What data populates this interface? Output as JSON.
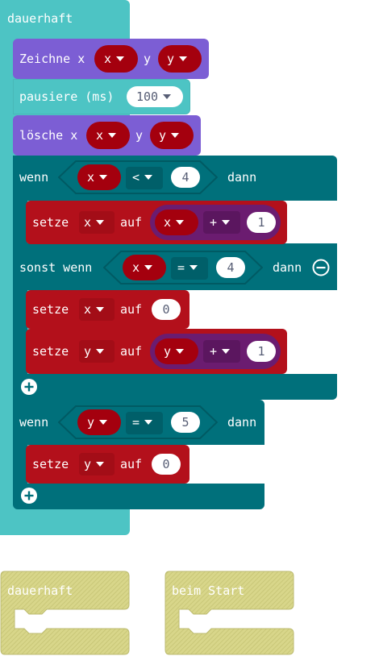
{
  "forever": {
    "label": "dauerhaft"
  },
  "plot": {
    "label": "Zeichne x",
    "y_label": "y",
    "x_var": "x",
    "y_var": "y"
  },
  "pause": {
    "label": "pausiere (ms)",
    "value": "100"
  },
  "unplot": {
    "label": "lösche x",
    "y_label": "y",
    "x_var": "x",
    "y_var": "y"
  },
  "if1": {
    "wenn": "wenn",
    "var": "x",
    "op": "<",
    "value": "4",
    "dann": "dann"
  },
  "set1": {
    "setze": "setze",
    "var": "x",
    "auf": "auf",
    "expr_var": "x",
    "expr_op": "+",
    "expr_value": "1"
  },
  "elseif": {
    "label": "sonst wenn",
    "var": "x",
    "op": "=",
    "value": "4",
    "dann": "dann"
  },
  "set2": {
    "setze": "setze",
    "var": "x",
    "auf": "auf",
    "value": "0"
  },
  "set3": {
    "setze": "setze",
    "var": "y",
    "auf": "auf",
    "expr_var": "y",
    "expr_op": "+",
    "expr_value": "1"
  },
  "if2": {
    "wenn": "wenn",
    "var": "y",
    "op": "=",
    "value": "5",
    "dann": "dann"
  },
  "set4": {
    "setze": "setze",
    "var": "y",
    "auf": "auf",
    "value": "0"
  },
  "palette": [
    {
      "label": "dauerhaft"
    },
    {
      "label": "beim Start"
    }
  ],
  "colors": {
    "loops": "#4dc4c4",
    "led": "#7c5ed4",
    "logic": "#00707b",
    "variables": "#b3101b",
    "variable_reporter": "#a4000e",
    "math": "#6b1c70",
    "ghost": "#d8d68a"
  }
}
